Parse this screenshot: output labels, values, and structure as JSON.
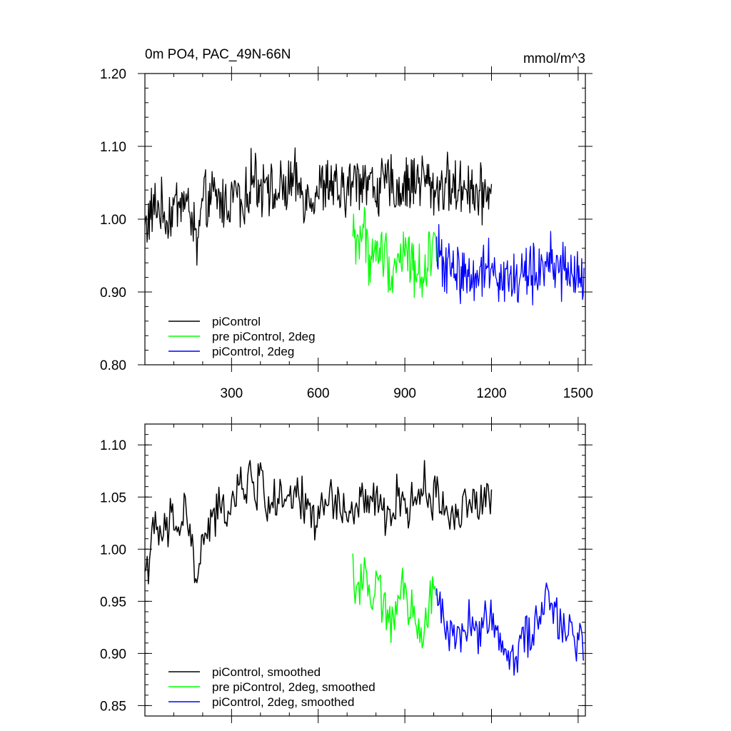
{
  "chart_data": [
    {
      "type": "line",
      "title": "0m PO4, PAC_49N-66N",
      "units": "mmol/m^3",
      "xlabel": "",
      "ylabel": "",
      "xlim": [
        0,
        1525
      ],
      "ylim": [
        0.8,
        1.2
      ],
      "xticks": [
        300,
        600,
        900,
        1200,
        1500
      ],
      "yticks": [
        0.8,
        0.9,
        1.0,
        1.1,
        1.2
      ],
      "xtick_labels": [
        "300",
        "600",
        "900",
        "1200",
        "1500"
      ],
      "ytick_labels": [
        "0.80",
        "0.90",
        "1.00",
        "1.10",
        "1.20"
      ],
      "legend_position": "bottom-left",
      "grid": false,
      "series": [
        {
          "name": "piControl",
          "color": "#000000",
          "x": [
            0,
            40,
            80,
            120,
            160,
            180,
            200,
            240,
            280,
            320,
            340,
            360,
            380,
            400,
            420,
            440,
            480,
            520,
            560,
            600,
            640,
            680,
            720,
            760,
            800,
            840,
            880,
            920,
            960,
            1000,
            1040,
            1080,
            1120,
            1160,
            1200
          ],
          "y": [
            0.99,
            1.02,
            1.0,
            1.03,
            1.01,
            0.96,
            1.02,
            1.03,
            1.02,
            1.04,
            1.0,
            1.05,
            1.06,
            1.04,
            1.07,
            1.03,
            1.04,
            1.05,
            1.03,
            1.04,
            1.05,
            1.03,
            1.05,
            1.06,
            1.04,
            1.05,
            1.04,
            1.05,
            1.06,
            1.04,
            1.05,
            1.04,
            1.05,
            1.03,
            1.05
          ]
        },
        {
          "name": "pre piControl, 2deg",
          "color": "#00ff00",
          "x": [
            720,
            740,
            760,
            780,
            800,
            820,
            840,
            860,
            880,
            900,
            920,
            940,
            960,
            980,
            1000,
            1010
          ],
          "y": [
            0.98,
            0.97,
            0.99,
            0.94,
            0.95,
            0.96,
            0.94,
            0.93,
            0.95,
            0.96,
            0.94,
            0.93,
            0.92,
            0.95,
            0.97,
            0.96
          ]
        },
        {
          "name": "piControl, 2deg",
          "color": "#0000ff",
          "x": [
            1010,
            1040,
            1080,
            1120,
            1160,
            1200,
            1240,
            1280,
            1320,
            1360,
            1400,
            1440,
            1480,
            1520
          ],
          "y": [
            0.95,
            0.94,
            0.93,
            0.92,
            0.93,
            0.94,
            0.92,
            0.91,
            0.93,
            0.92,
            0.95,
            0.93,
            0.92,
            0.92
          ]
        }
      ]
    },
    {
      "type": "line",
      "title": "",
      "xlabel": "",
      "ylabel": "",
      "xlim": [
        0,
        1525
      ],
      "ylim": [
        0.84,
        1.12
      ],
      "yticks": [
        0.85,
        0.9,
        0.95,
        1.0,
        1.05,
        1.1
      ],
      "ytick_labels": [
        "0.85",
        "0.90",
        "0.95",
        "1.00",
        "1.05",
        "1.10"
      ],
      "legend_position": "bottom-left",
      "grid": false,
      "series": [
        {
          "name": "piControl, smoothed",
          "color": "#000000",
          "x": [
            0,
            20,
            40,
            60,
            80,
            100,
            120,
            140,
            160,
            180,
            200,
            240,
            280,
            320,
            360,
            380,
            400,
            420,
            440,
            480,
            520,
            560,
            600,
            640,
            680,
            720,
            760,
            800,
            840,
            880,
            920,
            960,
            1000,
            1040,
            1080,
            1120,
            1160,
            1200
          ],
          "y": [
            0.98,
            1.0,
            1.02,
            1.01,
            1.02,
            1.03,
            1.02,
            1.04,
            1.01,
            0.96,
            1.01,
            1.03,
            1.04,
            1.05,
            1.07,
            1.05,
            1.08,
            1.04,
            1.05,
            1.04,
            1.05,
            1.04,
            1.03,
            1.05,
            1.04,
            1.03,
            1.05,
            1.04,
            1.03,
            1.05,
            1.04,
            1.06,
            1.05,
            1.04,
            1.03,
            1.05,
            1.04,
            1.05
          ]
        },
        {
          "name": "pre piControl, 2deg, smoothed",
          "color": "#00ff00",
          "x": [
            720,
            740,
            760,
            780,
            800,
            820,
            840,
            860,
            880,
            900,
            920,
            940,
            960,
            980,
            1000,
            1010
          ],
          "y": [
            0.98,
            0.96,
            0.99,
            0.95,
            0.96,
            0.95,
            0.94,
            0.93,
            0.95,
            0.96,
            0.94,
            0.93,
            0.92,
            0.95,
            0.97,
            0.95
          ]
        },
        {
          "name": "piControl, 2deg, smoothed",
          "color": "#0000ff",
          "x": [
            1010,
            1040,
            1080,
            1120,
            1160,
            1200,
            1240,
            1280,
            1320,
            1360,
            1400,
            1440,
            1480,
            1520
          ],
          "y": [
            0.95,
            0.93,
            0.92,
            0.93,
            0.92,
            0.94,
            0.91,
            0.9,
            0.92,
            0.93,
            0.95,
            0.93,
            0.92,
            0.91
          ]
        }
      ]
    }
  ]
}
